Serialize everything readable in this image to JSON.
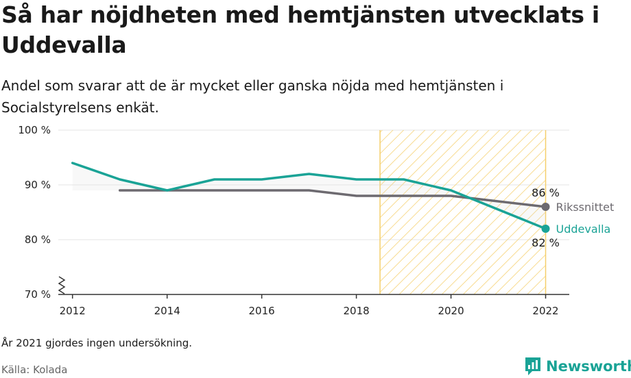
{
  "title": "Så har nöjdheten med hemtjänsten utvecklats i Uddevalla",
  "subtitle": "Andel som svarar att de är mycket eller ganska nöjda med hemtjänsten i Socialstyrelsens enkät.",
  "note": "År 2021 gjordes ingen undersökning.",
  "source": "Källa: Kolada",
  "brand": "Newsworthy",
  "colors": {
    "uddevalla": "#1aa396",
    "riket": "#6d6a70",
    "highlight": "#f5cf6b",
    "brand": "#1aa396"
  },
  "chart_data": {
    "type": "line",
    "xlim": [
      2011.7,
      2022.5
    ],
    "ylim": [
      70,
      100
    ],
    "y_ticks": [
      70,
      80,
      90,
      100
    ],
    "y_tick_labels": [
      "70 %",
      "80 %",
      "90 %",
      "100 %"
    ],
    "x_ticks": [
      2012,
      2014,
      2016,
      2018,
      2020,
      2022
    ],
    "x_tick_labels": [
      "2012",
      "2014",
      "2016",
      "2018",
      "2020",
      "2022"
    ],
    "highlight_range": [
      2018.5,
      2022
    ],
    "grid": true,
    "series": [
      {
        "name": "Uddevalla",
        "key": "uddevalla",
        "x": [
          2012,
          2013,
          2014,
          2015,
          2016,
          2017,
          2018,
          2019,
          2020,
          2022
        ],
        "values": [
          94,
          91,
          89,
          91,
          91,
          92,
          91,
          91,
          89,
          82
        ],
        "end_label": "82 %"
      },
      {
        "name": "Rikssnittet",
        "key": "riket",
        "x": [
          2013,
          2014,
          2015,
          2016,
          2017,
          2018,
          2019,
          2020,
          2022
        ],
        "values": [
          89,
          89,
          89,
          89,
          89,
          88,
          88,
          88,
          86
        ],
        "end_label": "86 %"
      }
    ]
  }
}
